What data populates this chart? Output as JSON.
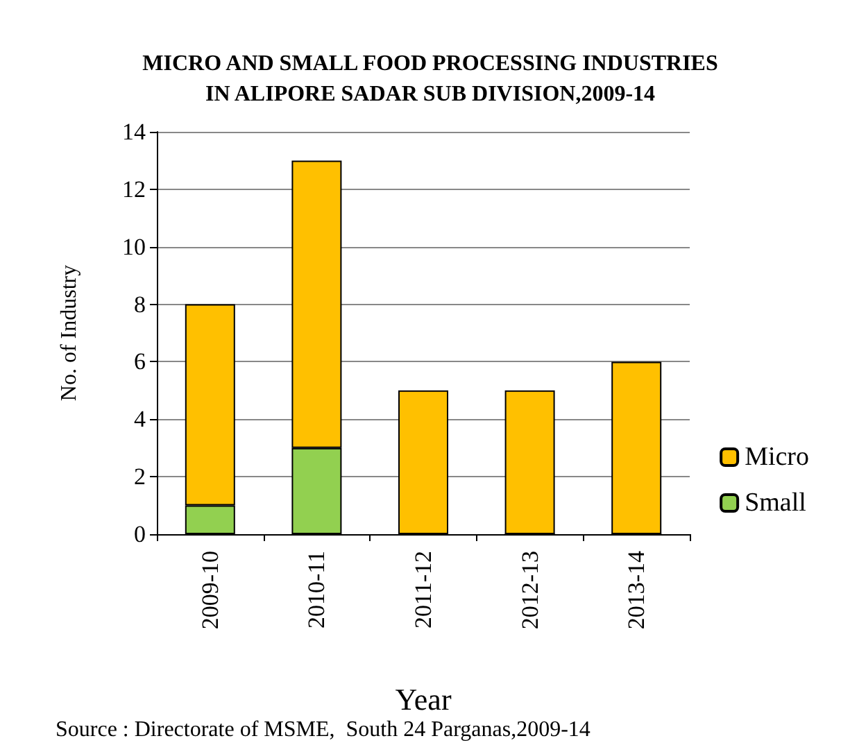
{
  "chart_data": {
    "type": "bar",
    "title": "MICRO AND SMALL FOOD PROCESSING INDUSTRIES\nIN ALIPORE SADAR SUB DIVISION,2009-14",
    "xlabel": "Year",
    "ylabel": "No. of Industry",
    "categories": [
      "2009-10",
      "2010-11",
      "2011-12",
      "2012-13",
      "2013-14"
    ],
    "series": [
      {
        "name": "Small",
        "color": "#92d050",
        "values": [
          1,
          3,
          0,
          0,
          0
        ]
      },
      {
        "name": "Micro",
        "color": "#ffc000",
        "values": [
          7,
          10,
          5,
          5,
          6
        ]
      }
    ],
    "stacked": true,
    "ylim": [
      0,
      14
    ],
    "yticks": [
      0,
      2,
      4,
      6,
      8,
      10,
      12,
      14
    ],
    "grid": "y",
    "legend": "right",
    "annotations": [
      "Source : Directorate of MSME,  South 24 Parganas,2009-14"
    ]
  }
}
